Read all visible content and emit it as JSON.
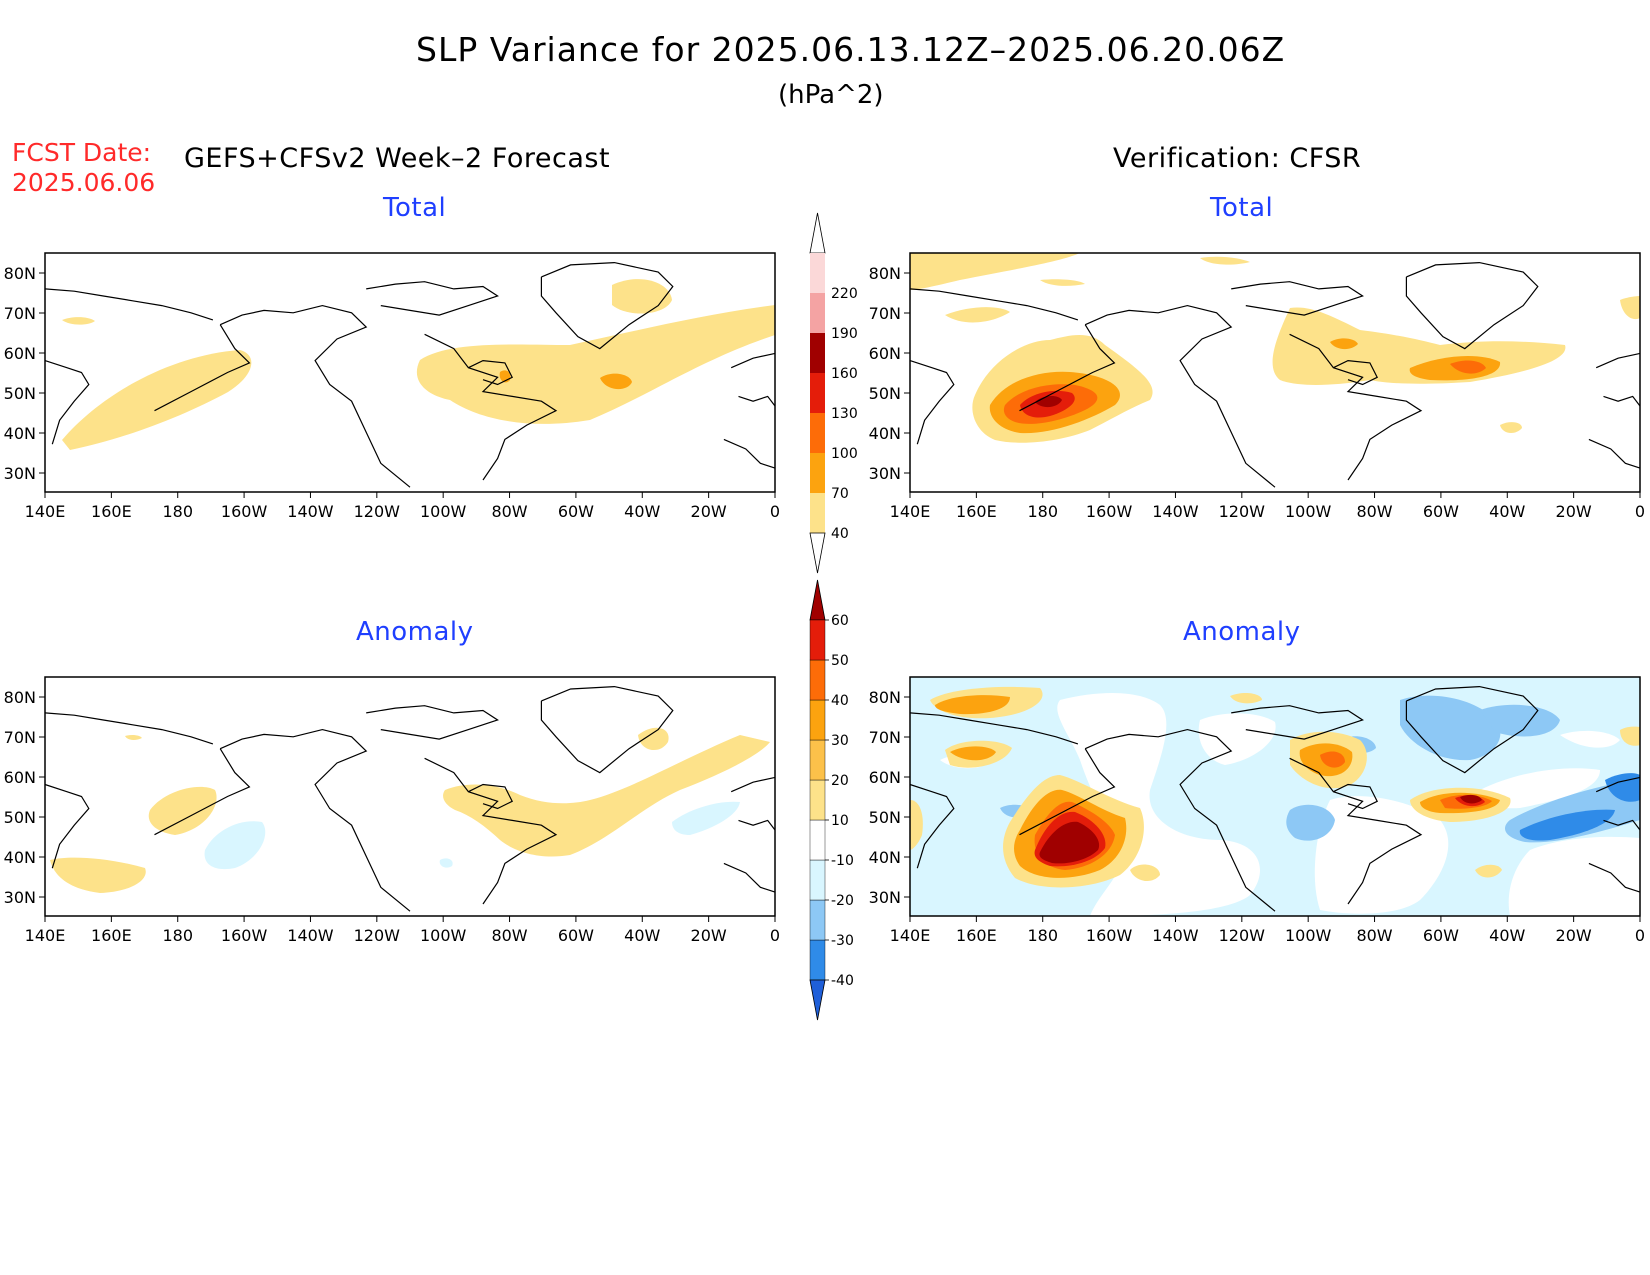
{
  "title": "SLP Variance for 2025.06.13.12Z–2025.06.20.06Z",
  "units": "(hPa^2)",
  "fcst_date_label": "FCST Date:",
  "fcst_date_value": "2025.06.06",
  "left_header": "GEFS+CFSv2 Week–2 Forecast",
  "right_header": "Verification: CFSR",
  "panels": {
    "fcst_total": {
      "title": "Total"
    },
    "verif_total": {
      "title": "Total"
    },
    "fcst_anom": {
      "title": "Anomaly"
    },
    "verif_anom": {
      "title": "Anomaly"
    }
  },
  "axes": {
    "lon_labels": [
      "140E",
      "160E",
      "180",
      "160W",
      "140W",
      "120W",
      "100W",
      "80W",
      "60W",
      "40W",
      "20W",
      "0"
    ],
    "lat_labels": [
      "80N",
      "70N",
      "60N",
      "50N",
      "40N",
      "30N"
    ]
  },
  "colorbars": {
    "total": {
      "levels": [
        "40",
        "70",
        "100",
        "130",
        "160",
        "190",
        "220"
      ],
      "colors": [
        "#fde28a",
        "#fca30f",
        "#fd6c08",
        "#e41d0a",
        "#a00000",
        "#f4a3a3",
        "#fbd8d8"
      ]
    },
    "anomaly": {
      "levels": [
        "-40",
        "-30",
        "-20",
        "-10",
        "10",
        "20",
        "30",
        "40",
        "50",
        "60"
      ],
      "colors": [
        "#1f5fd9",
        "#2f8be8",
        "#8dc8f5",
        "#d9f6ff",
        "#ffffff",
        "#fde28a",
        "#fcc14a",
        "#fca30f",
        "#fd6c08",
        "#e41d0a",
        "#a00000"
      ]
    }
  },
  "legend_colors": {
    "yellow": "#fde28a",
    "orange": "#fca30f",
    "dark_orange": "#fd6c08",
    "red": "#e41d0a",
    "dark_red": "#a00000",
    "light_blue": "#d9f6ff",
    "mid_blue": "#8dc8f5",
    "blue": "#2f8be8"
  }
}
